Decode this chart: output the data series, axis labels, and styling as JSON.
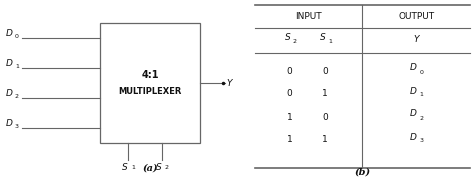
{
  "mux_label_line1": "4:1",
  "mux_label_line2": "MULTIPLEXER",
  "inputs": [
    "D",
    "D",
    "D",
    "D"
  ],
  "input_subs": [
    "0",
    "1",
    "2",
    "3"
  ],
  "selects": [
    "S",
    "S"
  ],
  "select_subs": [
    "1",
    "2"
  ],
  "output_label": "Y",
  "caption_a": "(a)",
  "caption_b": "(b)",
  "table_input_header": "INPUT",
  "table_output_header": "OUTPUT",
  "col_s2": "S",
  "col_s2_sub": "2",
  "col_s1": "S",
  "col_s1_sub": "1",
  "col_y": "Y",
  "rows_s2": [
    "0",
    "0",
    "1",
    "1"
  ],
  "rows_s1": [
    "0",
    "1",
    "0",
    "1"
  ],
  "rows_y_main": [
    "D",
    "D",
    "D",
    "D"
  ],
  "rows_y_sub": [
    "0",
    "1",
    "2",
    "3"
  ],
  "line_color": "#666666",
  "text_color": "#111111",
  "bg_color": "#ffffff",
  "font_size": 6.5,
  "label_font_size": 7.0
}
